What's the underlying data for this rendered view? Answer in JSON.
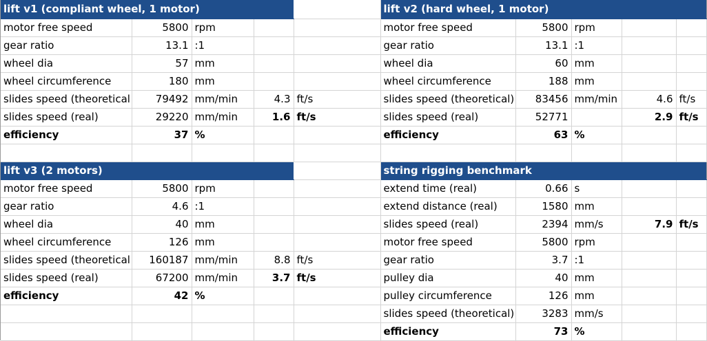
{
  "lift_v1": {
    "title": "lift v1 (compliant wheel, 1 motor)",
    "rows": [
      {
        "label": "motor free speed",
        "value": "5800",
        "unit": "rpm",
        "value2": "",
        "unit2": ""
      },
      {
        "label": "gear ratio",
        "value": "13.1",
        "unit": ":1",
        "value2": "",
        "unit2": ""
      },
      {
        "label": "wheel dia",
        "value": "57",
        "unit": "mm",
        "value2": "",
        "unit2": ""
      },
      {
        "label": "wheel circumference",
        "value": "180",
        "unit": "mm",
        "value2": "",
        "unit2": ""
      },
      {
        "label": "slides speed (theoretical",
        "value": "79492",
        "unit": "mm/min",
        "value2": "4.3",
        "unit2": "ft/s"
      },
      {
        "label": "slides speed (real)",
        "value": "29220",
        "unit": "mm/min",
        "value2": "1.6",
        "unit2": "ft/s"
      },
      {
        "label": "efficiency",
        "value": "37",
        "unit": "%",
        "value2": "",
        "unit2": ""
      }
    ]
  },
  "lift_v2": {
    "title": "lift v2 (hard wheel, 1 motor)",
    "rows": [
      {
        "label": "motor free speed",
        "value": "5800",
        "unit": "rpm",
        "value2": "",
        "unit2": ""
      },
      {
        "label": "gear ratio",
        "value": "13.1",
        "unit": ":1",
        "value2": "",
        "unit2": ""
      },
      {
        "label": "wheel dia",
        "value": "60",
        "unit": "mm",
        "value2": "",
        "unit2": ""
      },
      {
        "label": "wheel circumference",
        "value": "188",
        "unit": "mm",
        "value2": "",
        "unit2": ""
      },
      {
        "label": "slides speed (theoretical)",
        "value": "83456",
        "unit": "mm/min",
        "value2": "4.6",
        "unit2": "ft/s"
      },
      {
        "label": "slides speed (real)",
        "value": "52771",
        "unit": "",
        "value2": "2.9",
        "unit2": "ft/s"
      },
      {
        "label": "efficiency",
        "value": "63",
        "unit": "%",
        "value2": "",
        "unit2": ""
      }
    ]
  },
  "lift_v3": {
    "title": "lift v3 (2 motors)",
    "rows": [
      {
        "label": "motor free speed",
        "value": "5800",
        "unit": "rpm",
        "value2": "",
        "unit2": ""
      },
      {
        "label": "gear ratio",
        "value": "4.6",
        "unit": ":1",
        "value2": "",
        "unit2": ""
      },
      {
        "label": "wheel dia",
        "value": "40",
        "unit": "mm",
        "value2": "",
        "unit2": ""
      },
      {
        "label": "wheel circumference",
        "value": "126",
        "unit": "mm",
        "value2": "",
        "unit2": ""
      },
      {
        "label": "slides speed (theoretical",
        "value": "160187",
        "unit": "mm/min",
        "value2": "8.8",
        "unit2": "ft/s"
      },
      {
        "label": "slides speed (real)",
        "value": "67200",
        "unit": "mm/min",
        "value2": "3.7",
        "unit2": "ft/s"
      },
      {
        "label": "efficiency",
        "value": "42",
        "unit": "%",
        "value2": "",
        "unit2": ""
      }
    ]
  },
  "string_rigging": {
    "title": "string rigging benchmark",
    "rows": [
      {
        "label": "extend time (real)",
        "value": "0.66",
        "unit": "s",
        "value2": "",
        "unit2": ""
      },
      {
        "label": "extend distance (real)",
        "value": "1580",
        "unit": "mm",
        "value2": "",
        "unit2": ""
      },
      {
        "label": "slides speed (real)",
        "value": "2394",
        "unit": "mm/s",
        "value2": "7.9",
        "unit2": "ft/s"
      },
      {
        "label": "motor free speed",
        "value": "5800",
        "unit": "rpm",
        "value2": "",
        "unit2": ""
      },
      {
        "label": "gear ratio",
        "value": "3.7",
        "unit": ":1",
        "value2": "",
        "unit2": ""
      },
      {
        "label": "pulley dia",
        "value": "40",
        "unit": "mm",
        "value2": "",
        "unit2": ""
      },
      {
        "label": "pulley circumference",
        "value": "126",
        "unit": "mm",
        "value2": "",
        "unit2": ""
      },
      {
        "label": "slides speed (theoretical)",
        "value": "3283",
        "unit": "mm/s",
        "value2": "",
        "unit2": ""
      },
      {
        "label": "efficiency",
        "value": "73",
        "unit": "%",
        "value2": "",
        "unit2": ""
      }
    ]
  },
  "colors": {
    "header_fill": "#1f4e8c",
    "header_text": "#ffffff",
    "gridline": "#d4d4d4"
  }
}
